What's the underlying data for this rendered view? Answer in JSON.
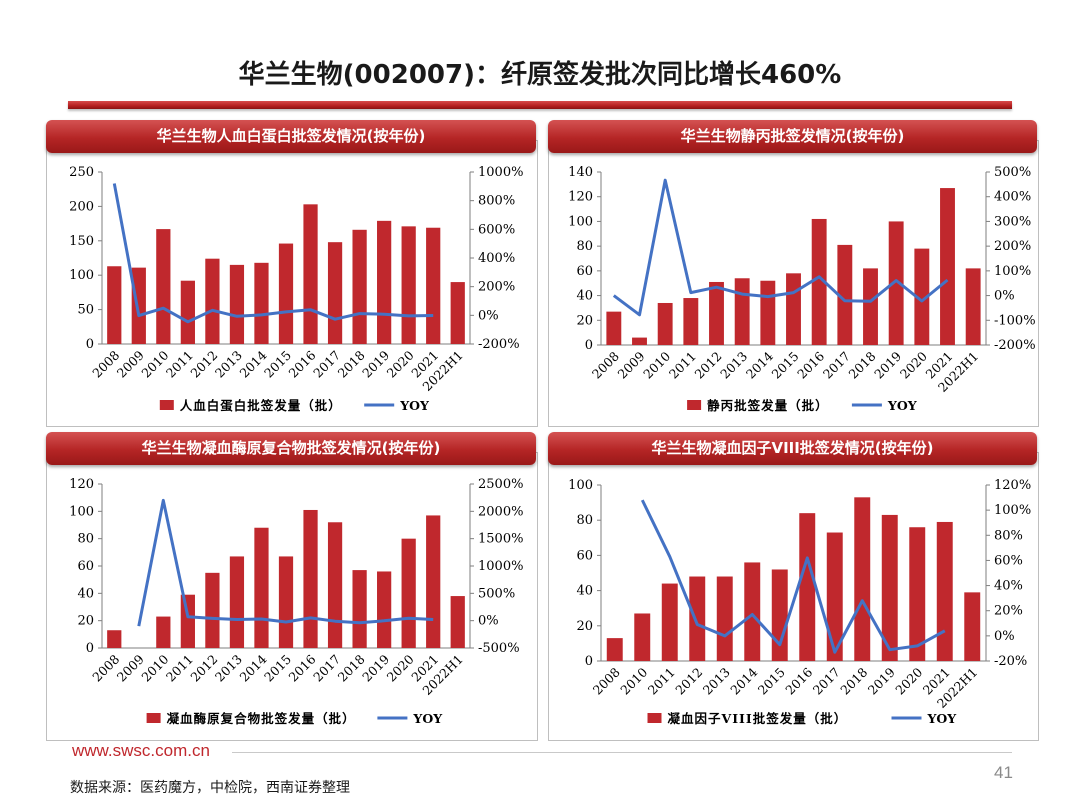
{
  "header": {
    "title": "华兰生物(002007)：纤原签发批次同比增长460%"
  },
  "footer": {
    "url": "www.swsc.com.cn",
    "page_number": "41",
    "source": "数据来源：医药魔方，中检院，西南证券整理"
  },
  "colors": {
    "bar": "#c0282d",
    "line": "#4472c4",
    "header_red": "#b52525"
  },
  "chart_data": [
    {
      "type": "bar",
      "title": "华兰生物人血白蛋白批签发情况(按年份)",
      "categories": [
        "2008",
        "2009",
        "2010",
        "2011",
        "2012",
        "2013",
        "2014",
        "2015",
        "2016",
        "2017",
        "2018",
        "2019",
        "2020",
        "2021",
        "2022H1"
      ],
      "series": [
        {
          "name": "人血白蛋白批签发量（批）",
          "type": "bar",
          "axis": "left",
          "values": [
            113,
            111,
            167,
            92,
            124,
            115,
            118,
            146,
            203,
            148,
            166,
            179,
            171,
            169,
            90
          ]
        },
        {
          "name": "YOY",
          "type": "line",
          "axis": "right",
          "values": [
            920,
            -2,
            50,
            -45,
            35,
            -7,
            3,
            24,
            39,
            -27,
            12,
            8,
            -4,
            -1,
            null
          ]
        }
      ],
      "ylim_left": [
        0,
        250
      ],
      "yticks_left": [
        0,
        50,
        100,
        150,
        200,
        250
      ],
      "ylim_right": [
        -200,
        1000
      ],
      "yticks_right": [
        -200,
        0,
        200,
        400,
        600,
        800,
        1000
      ],
      "right_suffix": "%",
      "legend": "bottom"
    },
    {
      "type": "bar",
      "title": "华兰生物静丙批签发情况(按年份)",
      "categories": [
        "2008",
        "2009",
        "2010",
        "2011",
        "2012",
        "2013",
        "2014",
        "2015",
        "2016",
        "2017",
        "2018",
        "2019",
        "2020",
        "2021",
        "2022H1"
      ],
      "series": [
        {
          "name": "静丙批签发量（批）",
          "type": "bar",
          "axis": "left",
          "values": [
            27,
            6,
            34,
            38,
            51,
            54,
            52,
            58,
            102,
            81,
            62,
            100,
            78,
            127,
            62
          ]
        },
        {
          "name": "YOY",
          "type": "line",
          "axis": "right",
          "values": [
            0,
            -78,
            467,
            12,
            34,
            6,
            -4,
            12,
            76,
            -21,
            -23,
            61,
            -22,
            63,
            null
          ]
        }
      ],
      "ylim_left": [
        0,
        140
      ],
      "yticks_left": [
        0,
        20,
        40,
        60,
        80,
        100,
        120,
        140
      ],
      "ylim_right": [
        -200,
        500
      ],
      "yticks_right": [
        -200,
        -100,
        0,
        100,
        200,
        300,
        400,
        500
      ],
      "right_suffix": "%",
      "legend": "bottom"
    },
    {
      "type": "bar",
      "title": "华兰生物凝血酶原复合物批签发情况(按年份)",
      "categories": [
        "2008",
        "2009",
        "2010",
        "2011",
        "2012",
        "2013",
        "2014",
        "2015",
        "2016",
        "2017",
        "2018",
        "2019",
        "2020",
        "2021",
        "2022H1"
      ],
      "series": [
        {
          "name": "凝血酶原复合物批签发量（批）",
          "type": "bar",
          "axis": "left",
          "values": [
            13,
            0,
            23,
            39,
            55,
            67,
            88,
            67,
            101,
            92,
            57,
            56,
            80,
            97,
            38
          ]
        },
        {
          "name": "YOY",
          "type": "line",
          "axis": "right",
          "values": [
            null,
            -100,
            2200,
            70,
            41,
            22,
            31,
            -24,
            51,
            -9,
            -38,
            -2,
            43,
            21,
            null
          ]
        }
      ],
      "ylim_left": [
        0,
        120
      ],
      "yticks_left": [
        0,
        20,
        40,
        60,
        80,
        100,
        120
      ],
      "ylim_right": [
        -500,
        2500
      ],
      "yticks_right": [
        -500,
        0,
        500,
        1000,
        1500,
        2000,
        2500
      ],
      "right_suffix": "%",
      "legend": "bottom"
    },
    {
      "type": "bar",
      "title": "华兰生物凝血因子VIII批签发情况(按年份)",
      "categories": [
        "2008",
        "2010",
        "2011",
        "2012",
        "2013",
        "2014",
        "2015",
        "2016",
        "2017",
        "2018",
        "2019",
        "2020",
        "2021",
        "2022H1"
      ],
      "series": [
        {
          "name": "凝血因子VIII批签发量（批）",
          "type": "bar",
          "axis": "left",
          "values": [
            13,
            27,
            44,
            48,
            48,
            56,
            52,
            84,
            73,
            93,
            83,
            76,
            79,
            39
          ]
        },
        {
          "name": "YOY",
          "type": "line",
          "axis": "right",
          "values": [
            null,
            108,
            63,
            9,
            0,
            17,
            -7,
            62,
            -13,
            28,
            -11,
            -8,
            4,
            null
          ]
        }
      ],
      "ylim_left": [
        0,
        100
      ],
      "yticks_left": [
        0,
        20,
        40,
        60,
        80,
        100
      ],
      "ylim_right": [
        -20,
        120
      ],
      "yticks_right": [
        -20,
        0,
        20,
        40,
        60,
        80,
        100,
        120
      ],
      "right_suffix": "%",
      "legend": "bottom"
    }
  ]
}
